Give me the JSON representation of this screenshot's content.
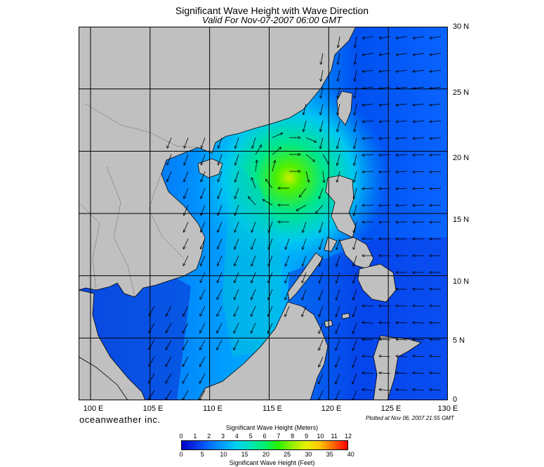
{
  "header": {
    "title": "Significant Wave Height with Wave Direction",
    "subtitle": "Valid For Nov-07-2007 06:00 GMT"
  },
  "map": {
    "lat_labels": [
      "30 N",
      "25 N",
      "20 N",
      "15 N",
      "10 N",
      "5 N",
      "0"
    ],
    "lon_labels": [
      "100 E",
      "105 E",
      "110 E",
      "115 E",
      "120 E",
      "125 E",
      "130 E"
    ],
    "lon_range": [
      99,
      130
    ],
    "lat_range": [
      0,
      30
    ],
    "land_color": "#c0c0c0",
    "grid_color": "#000000"
  },
  "footer": {
    "brand": "oceanweather inc.",
    "plotted": "Plotted at Nov 06, 2007 21:55 GMT"
  },
  "colorbar": {
    "title_top": "Significant Wave Height (Meters)",
    "title_bottom": "Significant Wave Height (Feet)",
    "meters_ticks": [
      "0",
      "1",
      "2",
      "3",
      "4",
      "5",
      "6",
      "7",
      "8",
      "9",
      "10",
      "11",
      "12"
    ],
    "feet_ticks": [
      "0",
      "5",
      "10",
      "15",
      "20",
      "25",
      "30",
      "35",
      "40"
    ],
    "colors": [
      "#0000c8",
      "#0a32e6",
      "#006eff",
      "#00a0ff",
      "#00d2f0",
      "#00e6b4",
      "#00f070",
      "#28f000",
      "#96f000",
      "#e6f000",
      "#ffc800",
      "#ff6400",
      "#ff0000"
    ]
  }
}
